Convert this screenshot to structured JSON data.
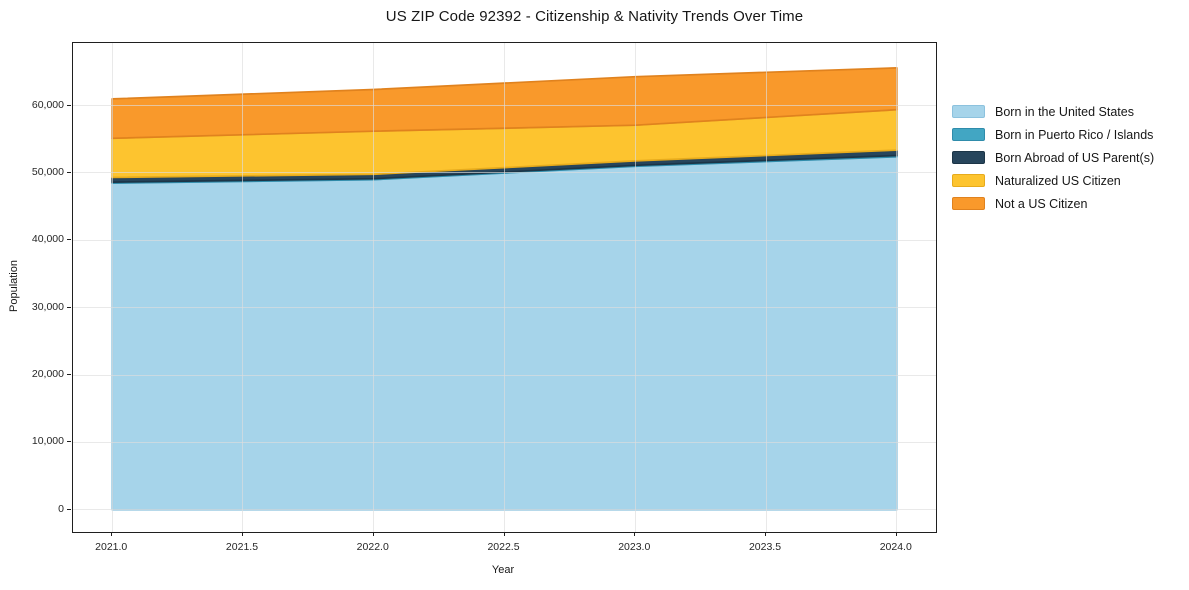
{
  "title": "US ZIP Code 92392 - Citizenship & Nativity Trends Over Time",
  "axes": {
    "xlabel": "Year",
    "ylabel": "Population",
    "xticks": [
      {
        "v": 2021.0,
        "label": "2021.0"
      },
      {
        "v": 2021.5,
        "label": "2021.5"
      },
      {
        "v": 2022.0,
        "label": "2022.0"
      },
      {
        "v": 2022.5,
        "label": "2022.5"
      },
      {
        "v": 2023.0,
        "label": "2023.0"
      },
      {
        "v": 2023.5,
        "label": "2023.5"
      },
      {
        "v": 2024.0,
        "label": "2024.0"
      }
    ],
    "yticks": [
      {
        "v": 0,
        "label": "0"
      },
      {
        "v": 10000,
        "label": "10,000"
      },
      {
        "v": 20000,
        "label": "20,000"
      },
      {
        "v": 30000,
        "label": "30,000"
      },
      {
        "v": 40000,
        "label": "40,000"
      },
      {
        "v": 50000,
        "label": "50,000"
      },
      {
        "v": 60000,
        "label": "60,000"
      }
    ]
  },
  "chart_data": {
    "type": "area",
    "stacked": true,
    "title": "US ZIP Code 92392 - Citizenship & Nativity Trends Over Time",
    "xlabel": "Year",
    "ylabel": "Population",
    "x": [
      2021,
      2022,
      2023,
      2024
    ],
    "series": [
      {
        "name": "Born in the United States",
        "color": "#a6d4ea",
        "edge": "#8cc2de",
        "values": [
          48500,
          49000,
          51000,
          52400
        ]
      },
      {
        "name": "Born in Puerto Rico / Islands",
        "color": "#42a6c3",
        "edge": "#2f8cab",
        "values": [
          150,
          150,
          150,
          200
        ]
      },
      {
        "name": "Born Abroad of US Parent(s)",
        "color": "#27455c",
        "edge": "#1c3547",
        "values": [
          700,
          650,
          650,
          800
        ]
      },
      {
        "name": "Naturalized US Citizen",
        "color": "#fdc42f",
        "edge": "#e7ab1c",
        "values": [
          5800,
          6400,
          5300,
          6000
        ]
      },
      {
        "name": "Not a US Citizen",
        "color": "#f9992b",
        "edge": "#e0821e",
        "values": [
          5850,
          6200,
          7200,
          6200
        ]
      }
    ],
    "totals": [
      61000,
      62400,
      64300,
      65600
    ],
    "xlim": [
      2020.85,
      2024.15
    ],
    "ylim": [
      -3300,
      69300
    ],
    "grid": true,
    "legend_position": "outside-right"
  }
}
